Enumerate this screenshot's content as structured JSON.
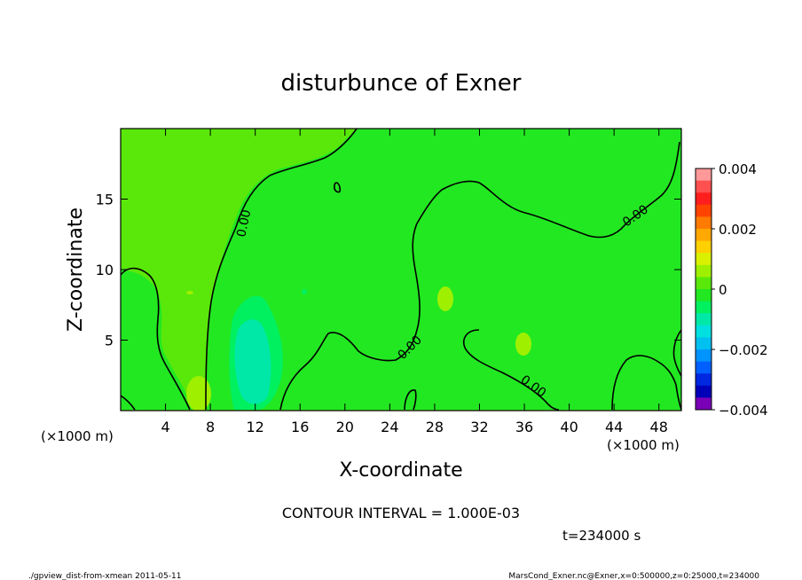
{
  "chart_data": {
    "type": "contour",
    "title": "disturbunce of Exner",
    "xlabel": "X-coordinate",
    "ylabel": "Z-coordinate",
    "x_unit": "(×1000 m)",
    "y_unit": "(×1000 m)",
    "xlim": [
      0,
      50
    ],
    "ylim": [
      0,
      20
    ],
    "x_ticks": [
      4,
      8,
      12,
      16,
      20,
      24,
      28,
      32,
      36,
      40,
      44,
      48
    ],
    "y_ticks": [
      5,
      10,
      15
    ],
    "contour_interval_text": "CONTOUR INTERVAL = 1.000E-03",
    "time_text": "t=234000 s",
    "contour_labels": [
      "0.00",
      "0.00",
      "0.00",
      "0.00"
    ],
    "colorbar": {
      "min": -0.004,
      "max": 0.004,
      "tick_labels": [
        "0.004",
        "0.002",
        "0",
        "−0.002",
        "−0.004"
      ],
      "colors": [
        "#ff9999",
        "#ff5050",
        "#ff1e1e",
        "#ff4400",
        "#ff7a00",
        "#ffa800",
        "#ffd000",
        "#d9f000",
        "#9ff000",
        "#5ae80a",
        "#22e822",
        "#00f060",
        "#00e8a8",
        "#00e0e0",
        "#00c0f0",
        "#0094ff",
        "#0060ff",
        "#0028e0",
        "#0000b8",
        "#7a00b8"
      ],
      "field_colors": {
        "base": "#5ae80a",
        "near_zero_pos": "#22e822",
        "weak_pos": "#9ff000",
        "weak_neg": "#00f060",
        "neg": "#00e8a8"
      }
    }
  },
  "footer": {
    "left": "./gpview_dist-from-xmean  2011-05-11",
    "right": "MarsCond_Exner.nc@Exner,x=0:500000,z=0:25000,t=234000"
  }
}
